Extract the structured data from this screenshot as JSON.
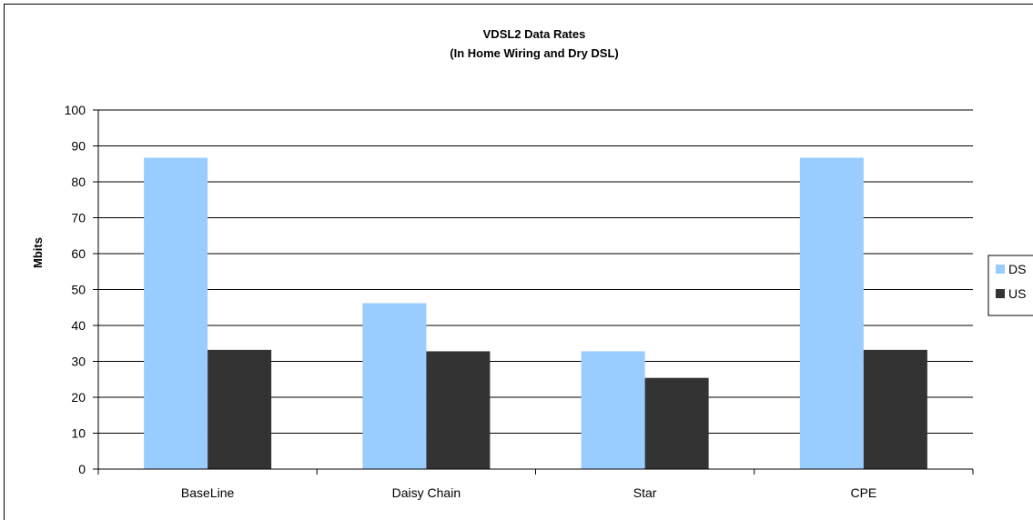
{
  "chart_data": {
    "type": "bar",
    "title_lines": [
      "VDSL2 Data Rates",
      "(In Home Wiring and Dry DSL)"
    ],
    "xlabel": "",
    "ylabel": "Mbits",
    "ylim": [
      0,
      100
    ],
    "yticks": [
      0,
      10,
      20,
      30,
      40,
      50,
      60,
      70,
      80,
      90,
      100
    ],
    "grid": true,
    "legend_position": "right",
    "categories": [
      "BaseLine",
      "Daisy Chain",
      "Star",
      "CPE"
    ],
    "series": [
      {
        "name": "DS",
        "color": "#99ccff",
        "values": [
          86.7,
          46.2,
          32.8,
          86.7
        ]
      },
      {
        "name": "US",
        "color": "#333333",
        "values": [
          33.2,
          32.8,
          25.4,
          33.2
        ]
      }
    ]
  }
}
